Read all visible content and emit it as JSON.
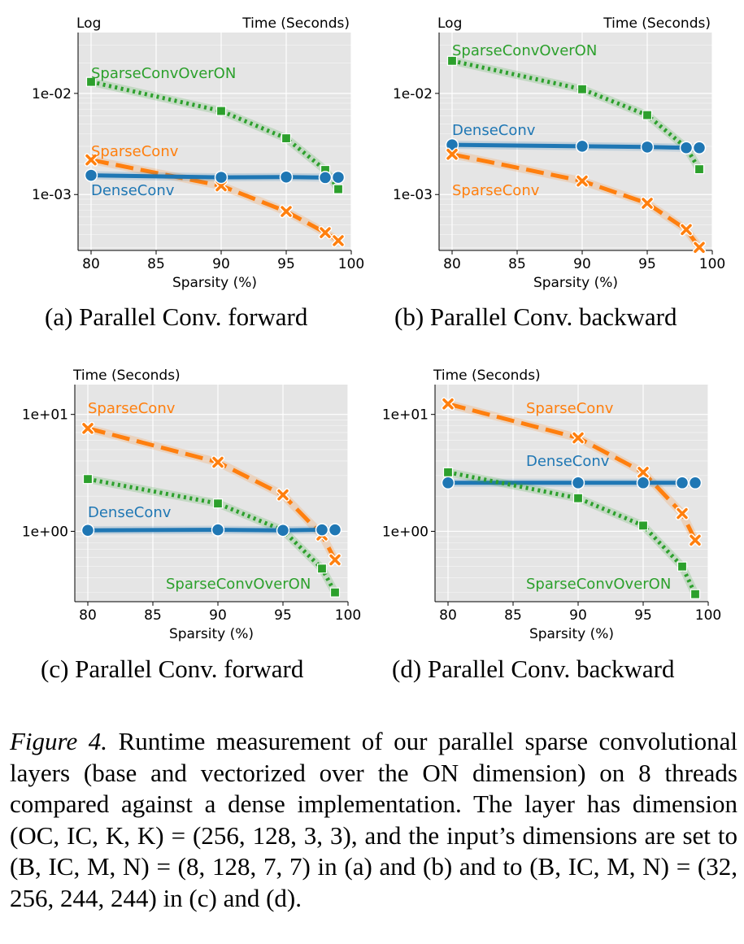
{
  "colors": {
    "SparseConv": "#ff7f0e",
    "DenseConv": "#1f77b4",
    "SparseConvOverON": "#2ca02c",
    "panel_bg": "#e5e5e5",
    "grid": "#ffffff"
  },
  "chart_data": [
    {
      "type": "line",
      "title": "",
      "caption": "(a) Parallel Conv. forward",
      "top_left_label": "Log",
      "top_right_label": "Time (Seconds)",
      "xlabel": "Sparsity (%)",
      "ylabel": "",
      "yscale": "log",
      "xlim": [
        79,
        100
      ],
      "ylim": [
        0.00028,
        0.04
      ],
      "xticks": [
        80,
        85,
        90,
        95,
        100
      ],
      "yticks": [
        0.001,
        0.01
      ],
      "ytick_labels": [
        "1e-03",
        "1e-02"
      ],
      "grid": true,
      "series": [
        {
          "name": "SparseConvOverON",
          "marker": "square",
          "dash": "dotted",
          "x": [
            80,
            90,
            95,
            98,
            99
          ],
          "y": [
            0.013,
            0.0067,
            0.0036,
            0.00175,
            0.00113
          ]
        },
        {
          "name": "SparseConv",
          "marker": "x",
          "dash": "dashed",
          "x": [
            80,
            90,
            95,
            98,
            99
          ],
          "y": [
            0.0022,
            0.00122,
            0.00068,
            0.00042,
            0.00035
          ]
        },
        {
          "name": "DenseConv",
          "marker": "circle",
          "dash": "solid",
          "x": [
            80,
            90,
            95,
            98,
            99
          ],
          "y": [
            0.00155,
            0.00148,
            0.00149,
            0.00147,
            0.00148
          ]
        }
      ],
      "series_labels": [
        "SparseConvOverON",
        "SparseConv",
        "DenseConv"
      ]
    },
    {
      "type": "line",
      "title": "",
      "caption": "(b) Parallel Conv. backward",
      "top_left_label": "Log",
      "top_right_label": "Time (Seconds)",
      "xlabel": "Sparsity (%)",
      "ylabel": "",
      "yscale": "log",
      "xlim": [
        79,
        100
      ],
      "ylim": [
        0.00028,
        0.04
      ],
      "xticks": [
        80,
        85,
        90,
        95,
        100
      ],
      "yticks": [
        0.001,
        0.01
      ],
      "ytick_labels": [
        "1e-03",
        "1e-02"
      ],
      "grid": true,
      "series": [
        {
          "name": "SparseConvOverON",
          "marker": "square",
          "dash": "dotted",
          "x": [
            80,
            90,
            95,
            98,
            99
          ],
          "y": [
            0.021,
            0.011,
            0.0061,
            0.0029,
            0.00178
          ]
        },
        {
          "name": "DenseConv",
          "marker": "circle",
          "dash": "solid",
          "x": [
            80,
            90,
            95,
            98,
            99
          ],
          "y": [
            0.0031,
            0.003,
            0.00295,
            0.0029,
            0.0029
          ]
        },
        {
          "name": "SparseConv",
          "marker": "x",
          "dash": "dashed",
          "x": [
            80,
            90,
            95,
            98,
            99
          ],
          "y": [
            0.0025,
            0.00136,
            0.00082,
            0.00045,
            0.0003
          ]
        }
      ],
      "series_labels": [
        "SparseConvOverON",
        "DenseConv",
        "SparseConv"
      ]
    },
    {
      "type": "line",
      "title": "",
      "caption": "(c) Parallel Conv. forward",
      "top_left_label": "Time (Seconds)",
      "top_right_label": "",
      "xlabel": "Sparsity (%)",
      "ylabel": "",
      "yscale": "log",
      "xlim": [
        79,
        100
      ],
      "ylim": [
        0.25,
        18
      ],
      "xticks": [
        80,
        85,
        90,
        95,
        100
      ],
      "yticks": [
        1,
        10
      ],
      "ytick_labels": [
        "1e+00",
        "1e+01"
      ],
      "grid": true,
      "series": [
        {
          "name": "SparseConv",
          "marker": "x",
          "dash": "dashed",
          "x": [
            80,
            90,
            95,
            98,
            99
          ],
          "y": [
            7.6,
            3.9,
            2.05,
            0.93,
            0.57
          ]
        },
        {
          "name": "SparseConvOverON",
          "marker": "square",
          "dash": "dotted",
          "x": [
            80,
            90,
            95,
            98,
            99
          ],
          "y": [
            2.8,
            1.73,
            1.02,
            0.48,
            0.3
          ]
        },
        {
          "name": "DenseConv",
          "marker": "circle",
          "dash": "solid",
          "x": [
            80,
            90,
            95,
            98,
            99
          ],
          "y": [
            1.02,
            1.03,
            1.02,
            1.03,
            1.03
          ]
        }
      ],
      "series_labels": [
        "SparseConv",
        "DenseConv",
        "SparseConvOverON"
      ]
    },
    {
      "type": "line",
      "title": "",
      "caption": "(d) Parallel Conv. backward",
      "top_left_label": "Time (Seconds)",
      "top_right_label": "",
      "xlabel": "Sparsity (%)",
      "ylabel": "",
      "yscale": "log",
      "xlim": [
        79,
        100
      ],
      "ylim": [
        0.25,
        18
      ],
      "xticks": [
        80,
        85,
        90,
        95,
        100
      ],
      "yticks": [
        1,
        10
      ],
      "ytick_labels": [
        "1e+00",
        "1e+01"
      ],
      "grid": true,
      "series": [
        {
          "name": "SparseConv",
          "marker": "x",
          "dash": "dashed",
          "x": [
            80,
            90,
            95,
            98,
            99
          ],
          "y": [
            12.3,
            6.3,
            3.2,
            1.42,
            0.84
          ]
        },
        {
          "name": "DenseConv",
          "marker": "circle",
          "dash": "solid",
          "x": [
            80,
            90,
            95,
            98,
            99
          ],
          "y": [
            2.6,
            2.6,
            2.6,
            2.6,
            2.6
          ]
        },
        {
          "name": "SparseConvOverON",
          "marker": "square",
          "dash": "dotted",
          "x": [
            80,
            90,
            95,
            98,
            99
          ],
          "y": [
            3.2,
            1.92,
            1.12,
            0.5,
            0.29
          ]
        }
      ],
      "series_labels": [
        "SparseConv",
        "DenseConv",
        "SparseConvOverON"
      ]
    }
  ],
  "figure_caption": {
    "label": "Figure 4.",
    "text": " Runtime measurement of our parallel sparse convolutional layers (base and vectorized over the ON dimension) on 8 threads compared against a dense implementation. The layer has dimension (OC, IC, K, K) = (256, 128, 3, 3), and the input’s dimensions are set to (B, IC, M, N) = (8, 128, 7, 7) in (a) and (b) and to (B, IC, M, N) = (32, 256, 244, 244) in (c) and (d)."
  }
}
